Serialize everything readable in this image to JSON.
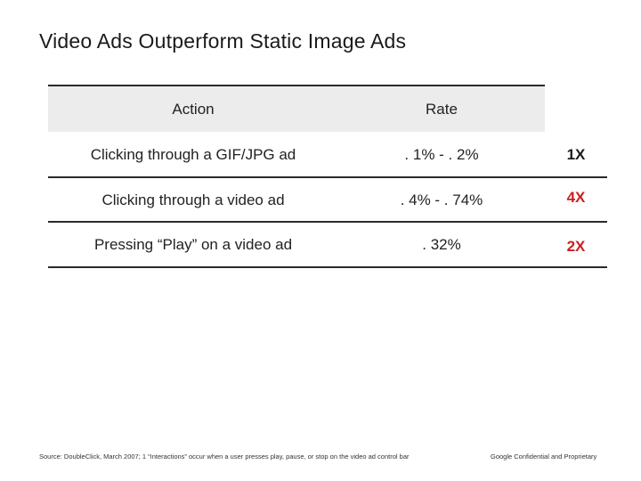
{
  "slide": {
    "title": "Video Ads Outperform Static Image Ads"
  },
  "table": {
    "headers": {
      "action": "Action",
      "rate": "Rate"
    },
    "rows": [
      {
        "action": "Clicking through a GIF/JPG ad",
        "rate": ". 1% - . 2%",
        "multiplier": "1X",
        "multiplier_color": "#1a1a1a"
      },
      {
        "action": "Clicking through a video ad",
        "rate": ". 4% - . 74%",
        "multiplier": "4X",
        "multiplier_color": "#cc1f1f"
      },
      {
        "action": "Pressing “Play” on a video ad",
        "rate": ". 32%",
        "multiplier": "2X",
        "multiplier_color": "#cc1f1f"
      }
    ]
  },
  "footer": {
    "source": "Source: DoubleClick, March 2007; 1 “Interactions” occur when a user presses play, pause, or stop on the video ad control bar",
    "confidential": "Google Confidential and Proprietary"
  },
  "colors": {
    "header_background": "#ececec",
    "rule": "#2a2a2a",
    "highlight": "#cc1f1f"
  }
}
